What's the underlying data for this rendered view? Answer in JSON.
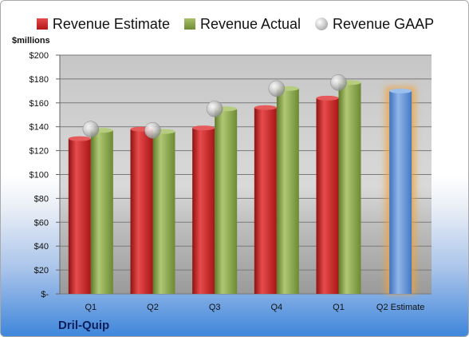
{
  "legend": {
    "estimate": "Revenue Estimate",
    "actual": "Revenue Actual",
    "gaap": "Revenue GAAP"
  },
  "units_label": "$millions",
  "company": "Dril-Quip",
  "colors": {
    "estimate": "#c62828",
    "actual": "#8aa64b",
    "gaap": "#b0b0b0",
    "projection": "#5b8fd6",
    "projection_glow": "#f2a33a"
  },
  "chart_data": {
    "type": "bar",
    "categories": [
      "Q1",
      "Q2",
      "Q3",
      "Q4",
      "Q1",
      "Q2 Estimate"
    ],
    "ylabel": "$millions",
    "ylim": [
      0,
      200
    ],
    "yticks": [
      0,
      20,
      40,
      60,
      80,
      100,
      120,
      140,
      160,
      180,
      200
    ],
    "ytick_labels": [
      "$-",
      "$20",
      "$40",
      "$60",
      "$80",
      "$100",
      "$120",
      "$140",
      "$160",
      "$180",
      "$200"
    ],
    "grid": true,
    "legend": "top",
    "series": [
      {
        "name": "Revenue Estimate",
        "type": "bar",
        "values": [
          130,
          138,
          139,
          156,
          164,
          null
        ]
      },
      {
        "name": "Revenue Actual",
        "type": "bar",
        "values": [
          137,
          136,
          155,
          172,
          177,
          null
        ]
      },
      {
        "name": "Revenue GAAP",
        "type": "scatter",
        "values": [
          138,
          137,
          155,
          172,
          177,
          null
        ]
      }
    ],
    "projection": {
      "category": "Q2 Estimate",
      "value": 170
    }
  }
}
